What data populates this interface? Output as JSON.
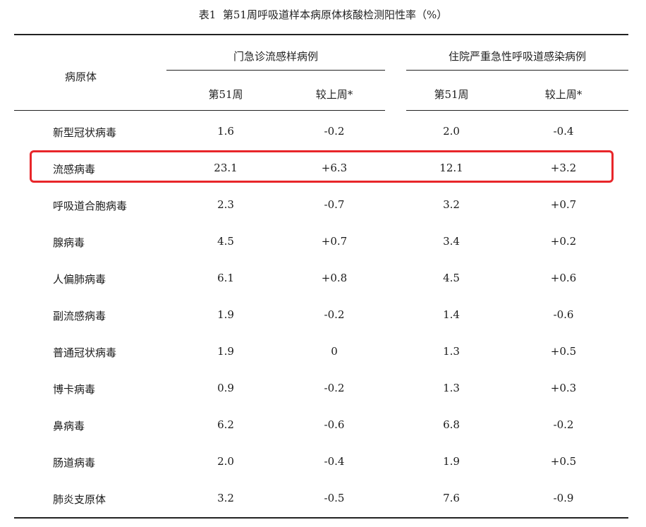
{
  "title": "表1  第51周呼吸道样本病原体核酸检测阳性率（%）",
  "header": {
    "pathogen": "病原体",
    "group1": "门急诊流感样病例",
    "group2": "住院严重急性呼吸道感染病例",
    "week": "第51周",
    "change": "较上周*"
  },
  "highlight_color": "#e8262a",
  "rows": [
    {
      "name": "新型冠状病毒",
      "op_week": "1.6",
      "op_change": "-0.2",
      "ip_week": "2.0",
      "ip_change": "-0.4"
    },
    {
      "name": "流感病毒",
      "op_week": "23.1",
      "op_change": "+6.3",
      "ip_week": "12.1",
      "ip_change": "+3.2"
    },
    {
      "name": "呼吸道合胞病毒",
      "op_week": "2.3",
      "op_change": "-0.7",
      "ip_week": "3.2",
      "ip_change": "+0.7"
    },
    {
      "name": "腺病毒",
      "op_week": "4.5",
      "op_change": "+0.7",
      "ip_week": "3.4",
      "ip_change": "+0.2"
    },
    {
      "name": "人偏肺病毒",
      "op_week": "6.1",
      "op_change": "+0.8",
      "ip_week": "4.5",
      "ip_change": "+0.6"
    },
    {
      "name": "副流感病毒",
      "op_week": "1.9",
      "op_change": "-0.2",
      "ip_week": "1.4",
      "ip_change": "-0.6"
    },
    {
      "name": "普通冠状病毒",
      "op_week": "1.9",
      "op_change": "0",
      "ip_week": "1.3",
      "ip_change": "+0.5"
    },
    {
      "name": "博卡病毒",
      "op_week": "0.9",
      "op_change": "-0.2",
      "ip_week": "1.3",
      "ip_change": "+0.3"
    },
    {
      "name": "鼻病毒",
      "op_week": "6.2",
      "op_change": "-0.6",
      "ip_week": "6.8",
      "ip_change": "-0.2"
    },
    {
      "name": "肠道病毒",
      "op_week": "2.0",
      "op_change": "-0.4",
      "ip_week": "1.9",
      "ip_change": "+0.5"
    },
    {
      "name": "肺炎支原体",
      "op_week": "3.2",
      "op_change": "-0.5",
      "ip_week": "7.6",
      "ip_change": "-0.9"
    }
  ]
}
